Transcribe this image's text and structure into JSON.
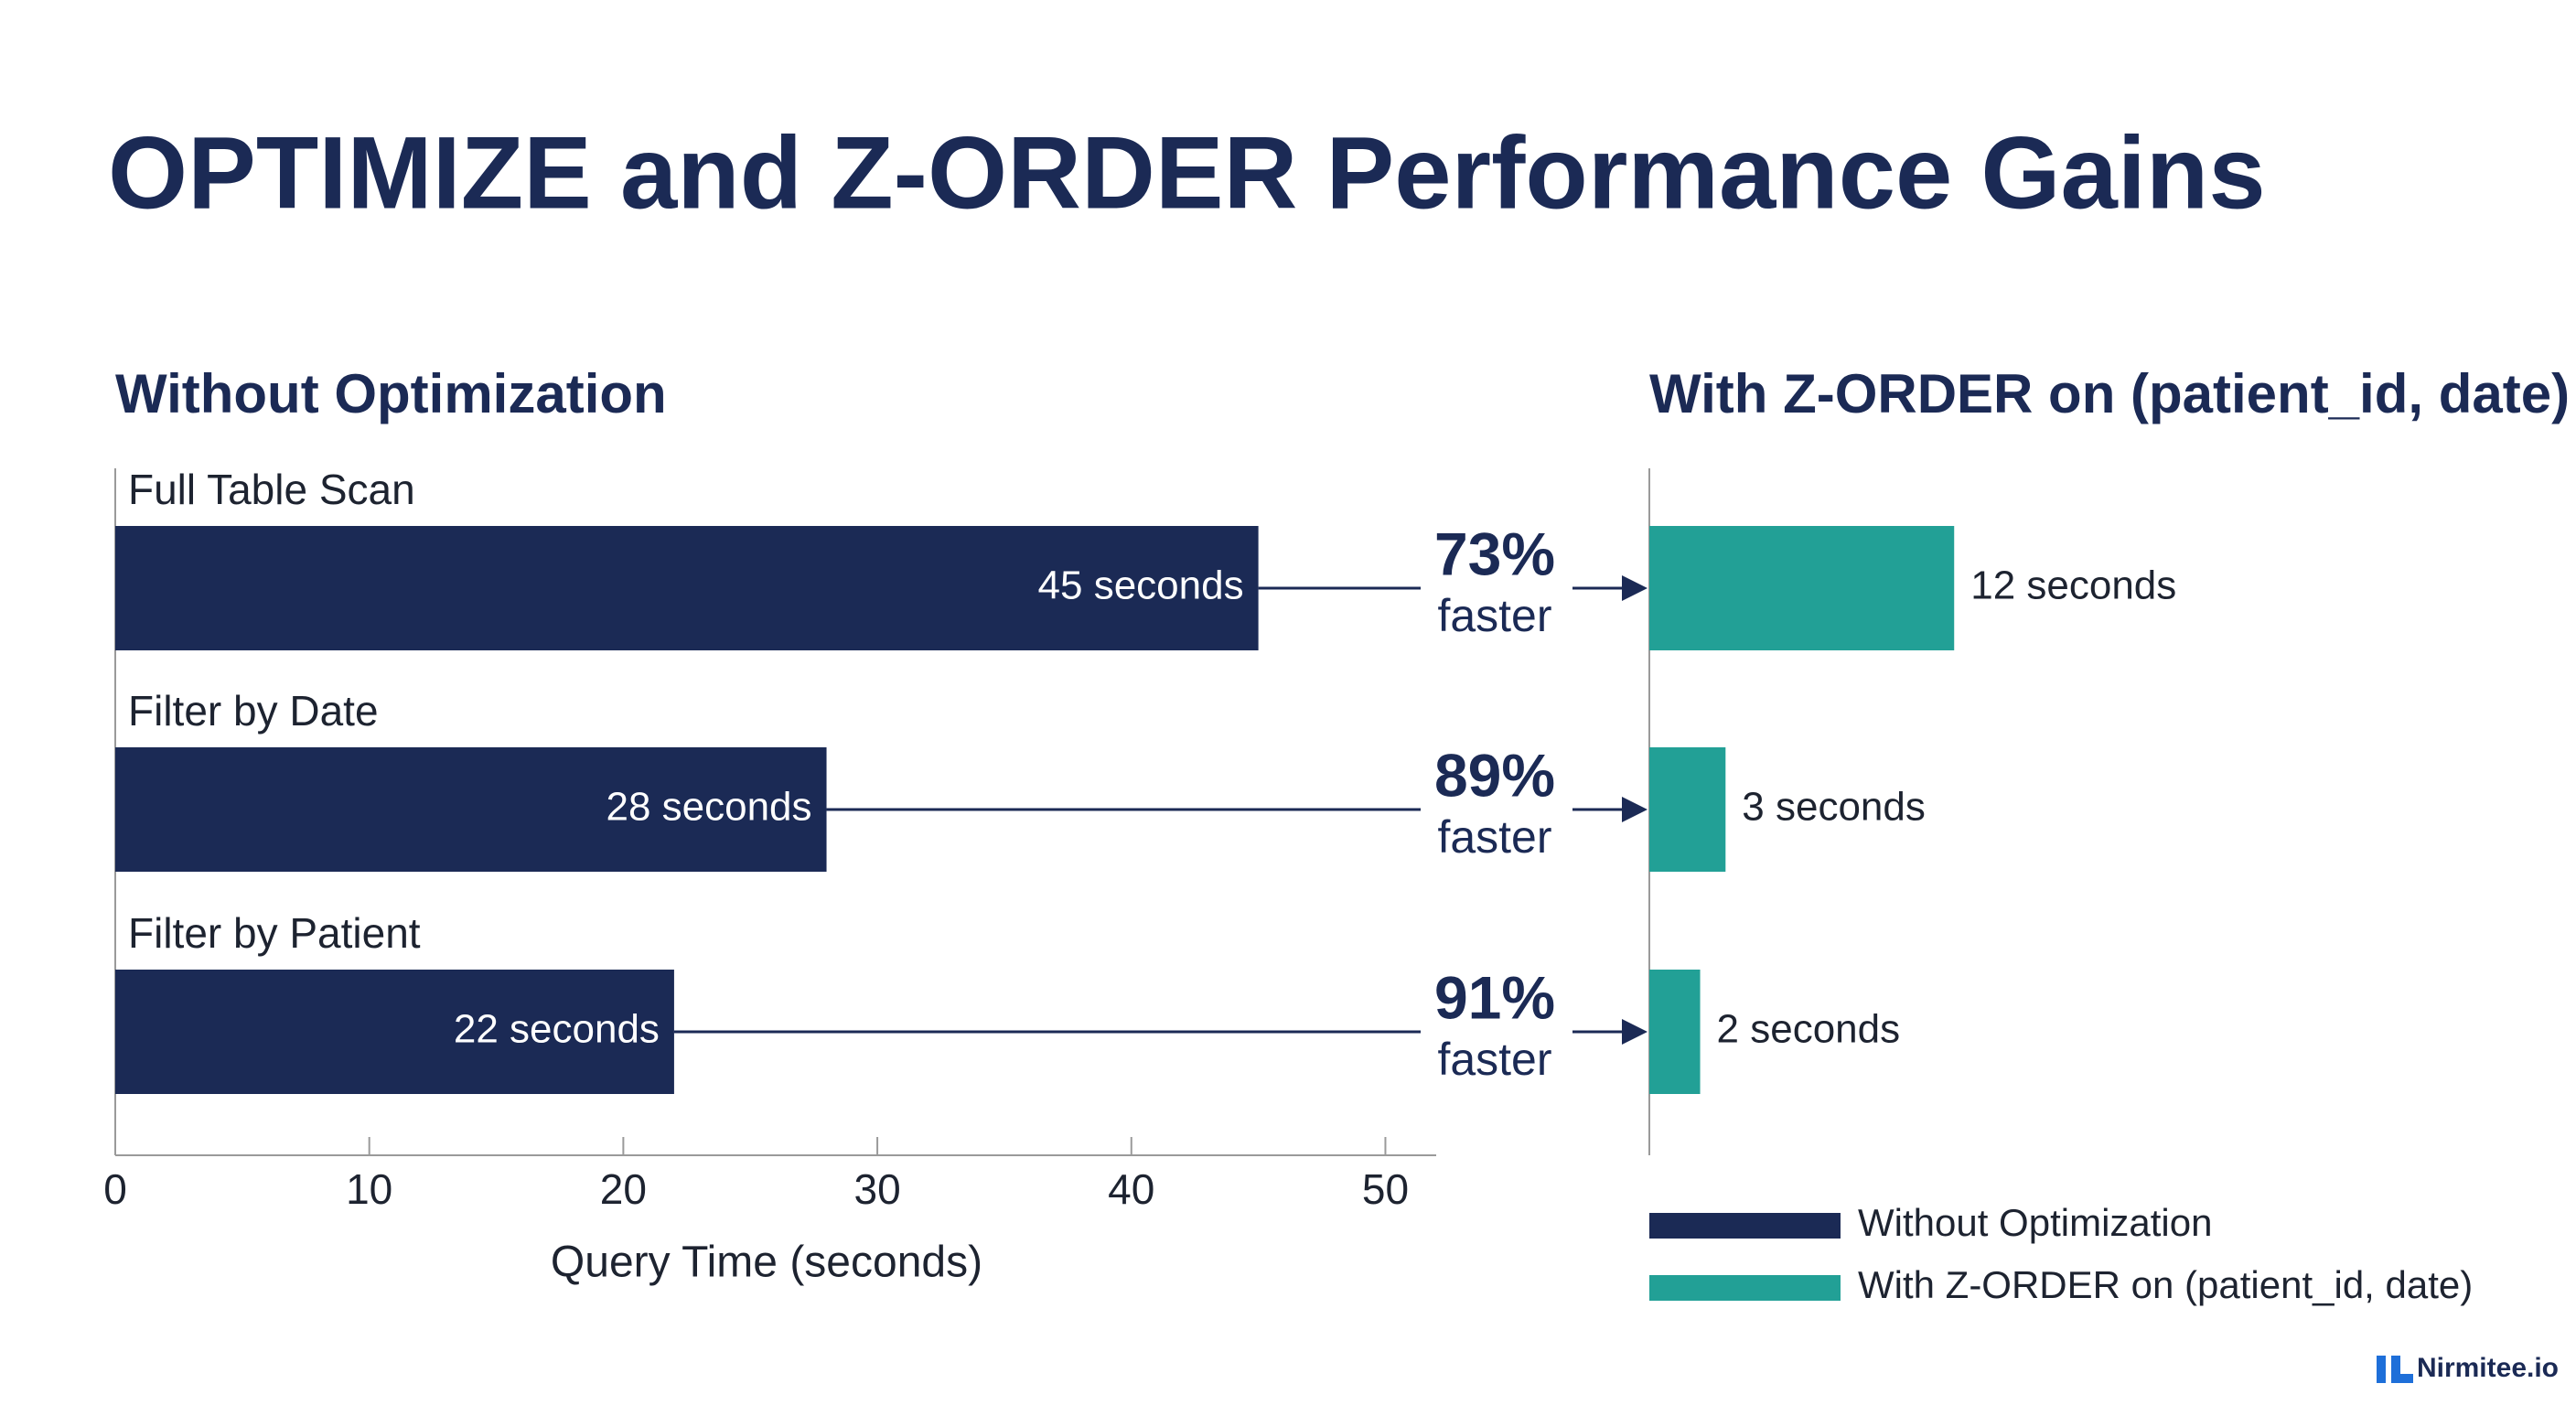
{
  "chart_data": {
    "type": "bar",
    "orientation": "horizontal",
    "title": "OPTIMIZE and Z-ORDER Performance Gains",
    "categories": [
      "Full Table Scan",
      "Filter by Date",
      "Filter by Patient"
    ],
    "series": [
      {
        "name": "Without Optimization",
        "color": "#1b2a55",
        "values": [
          45,
          28,
          22
        ],
        "value_labels": [
          "45 seconds",
          "28 seconds",
          "22 seconds"
        ]
      },
      {
        "name": "With Z-ORDER on (patient_id, date)",
        "color": "#22a096",
        "values": [
          12,
          3,
          2
        ],
        "value_labels": [
          "12 seconds",
          "3 seconds",
          "2 seconds"
        ]
      }
    ],
    "improvement": {
      "values": [
        73,
        89,
        91
      ],
      "value_labels": [
        "73%",
        "89%",
        "91%"
      ],
      "text": "faster"
    },
    "xlabel": "Query Time (seconds)",
    "xlim": [
      0,
      52
    ],
    "xticks": [
      0,
      10,
      20,
      30,
      40,
      50
    ],
    "watermark": "Nirmitee.io"
  }
}
